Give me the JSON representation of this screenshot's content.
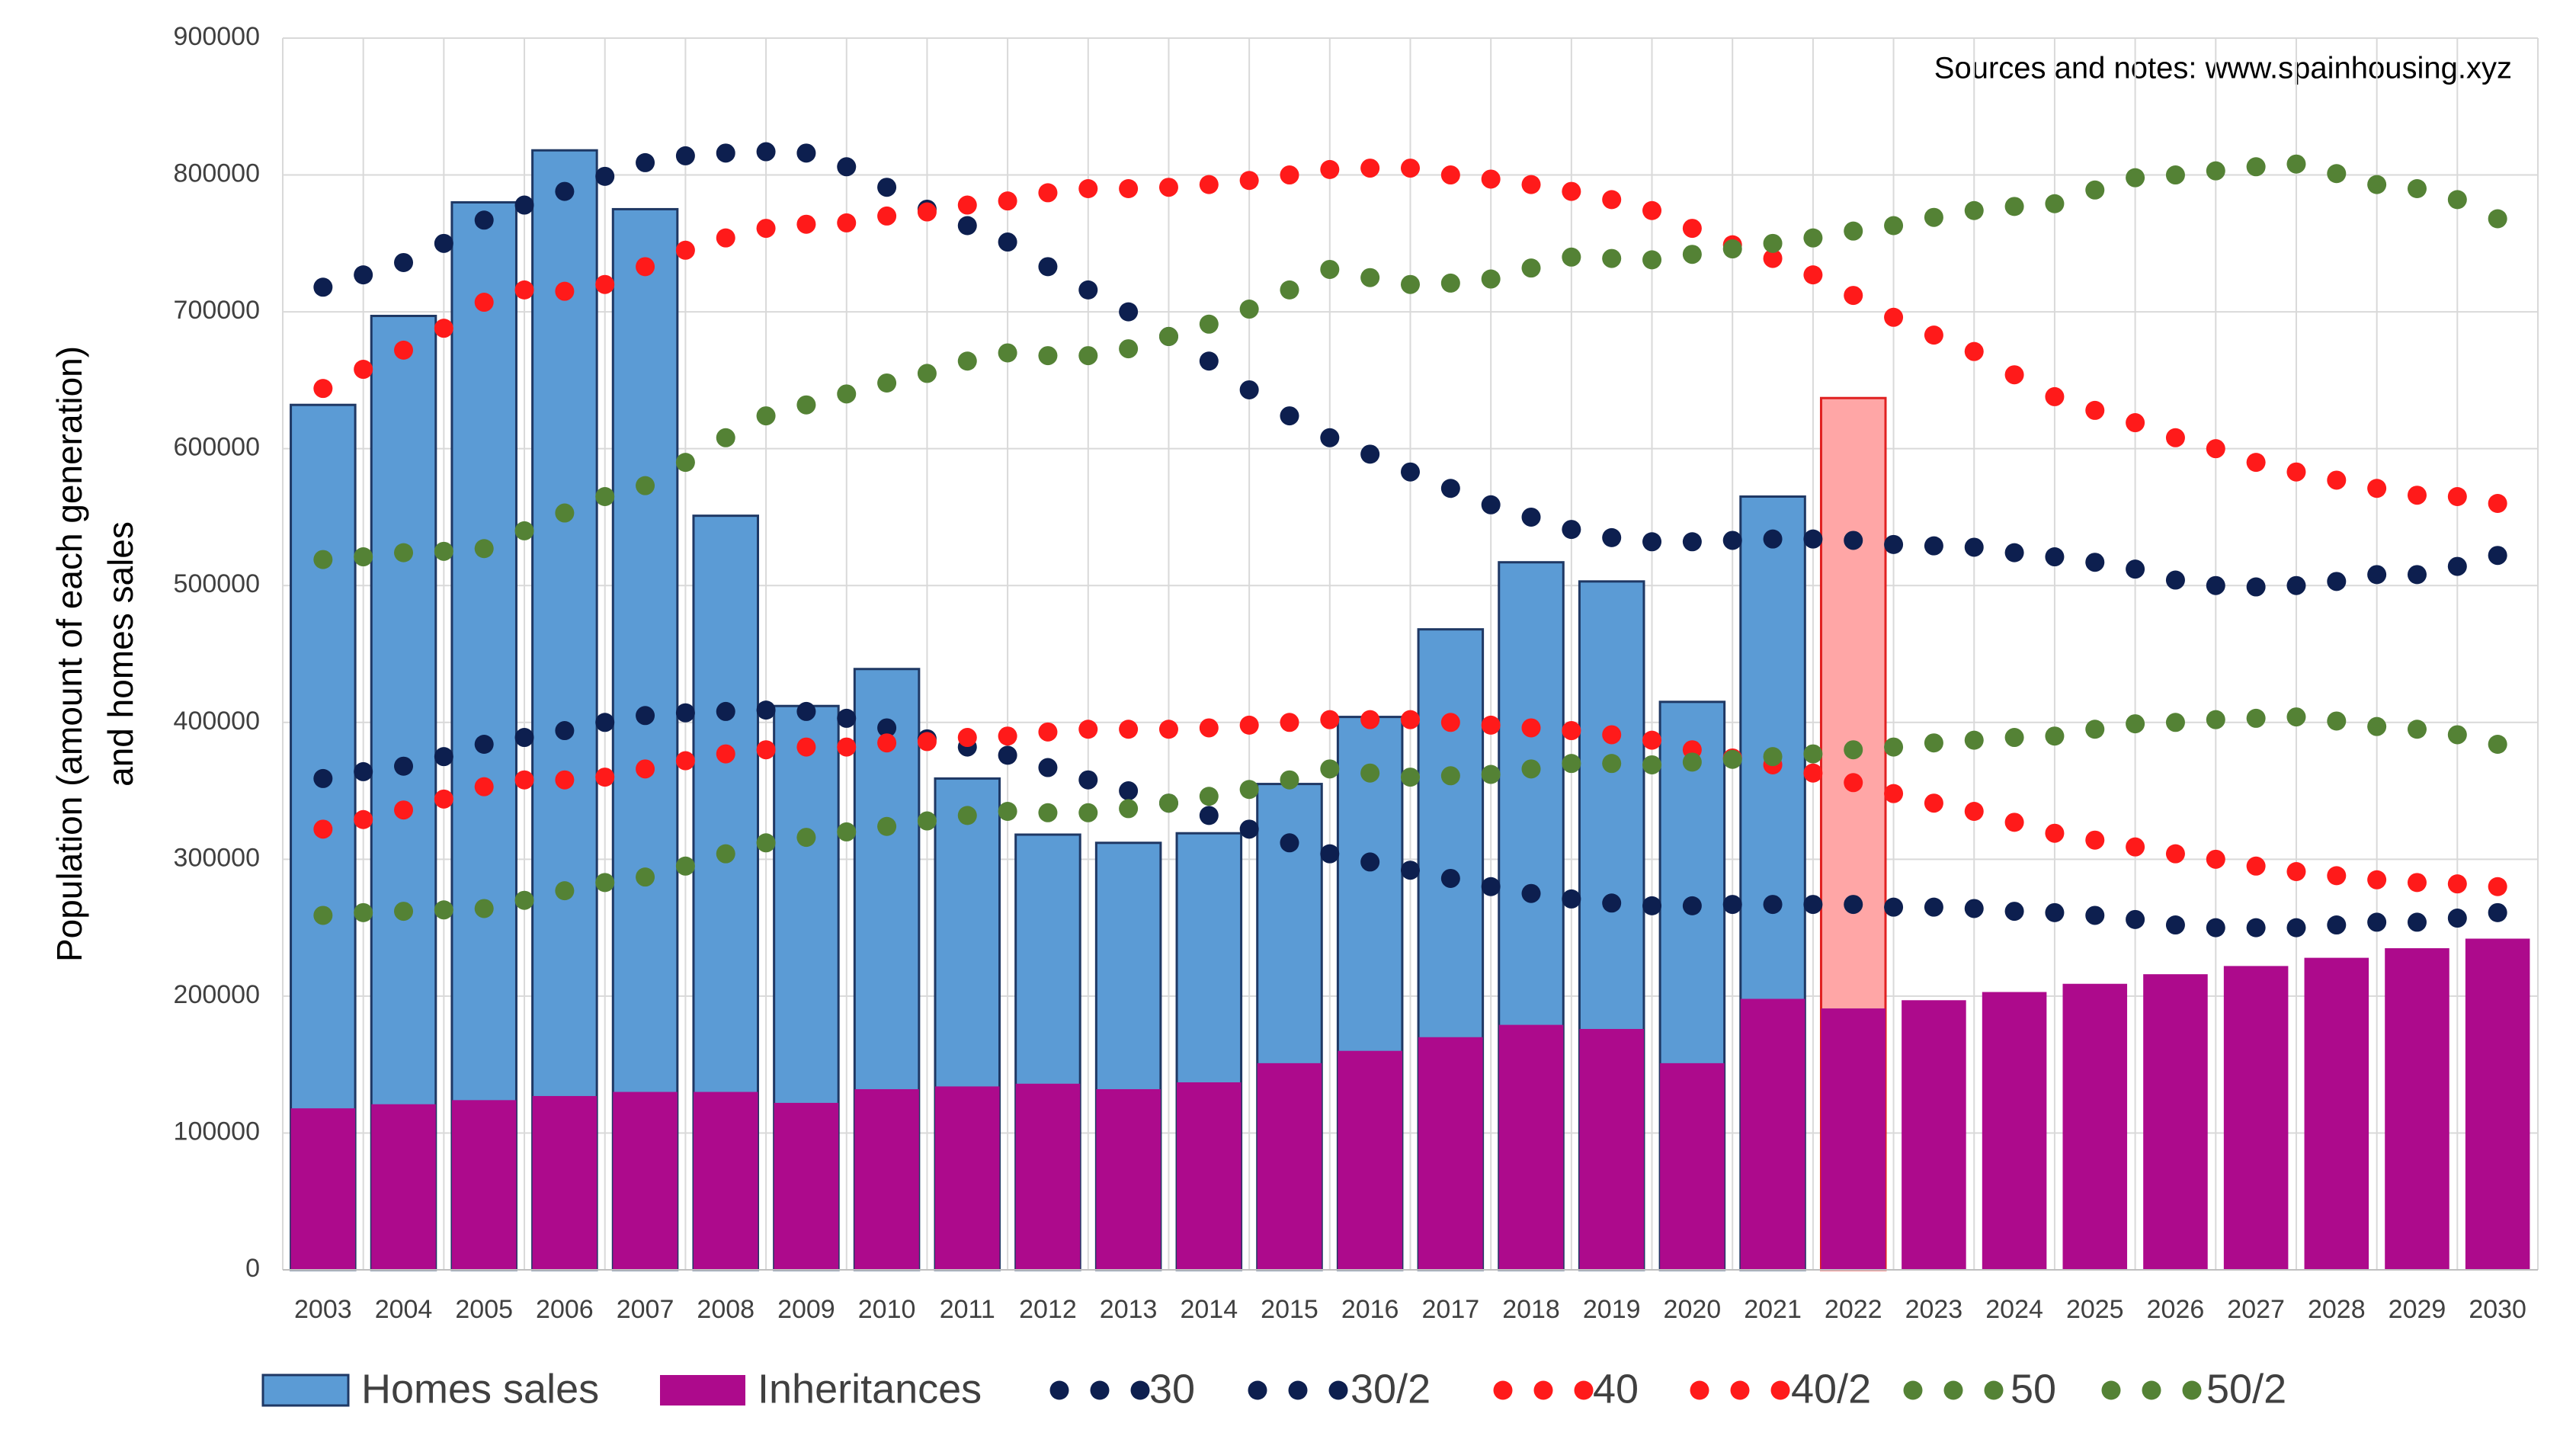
{
  "chart_data": {
    "type": "combo",
    "annotation": "Sources and notes: www.spainhousing.xyz",
    "ylabel": [
      "Population (amount of each generation)",
      "and homes sales"
    ],
    "categories": [
      "2003",
      "2004",
      "2005",
      "2006",
      "2007",
      "2008",
      "2009",
      "2010",
      "2011",
      "2012",
      "2013",
      "2014",
      "2015",
      "2016",
      "2017",
      "2018",
      "2019",
      "2020",
      "2021",
      "2022",
      "2023",
      "2024",
      "2025",
      "2026",
      "2027",
      "2028",
      "2029",
      "2030"
    ],
    "x": [
      2003,
      2003.5,
      2004,
      2004.5,
      2005,
      2005.5,
      2006,
      2006.5,
      2007,
      2007.5,
      2008,
      2008.5,
      2009,
      2009.5,
      2010,
      2010.5,
      2011,
      2011.5,
      2012,
      2012.5,
      2013,
      2013.5,
      2014,
      2014.5,
      2015,
      2015.5,
      2016,
      2016.5,
      2017,
      2017.5,
      2018,
      2018.5,
      2019,
      2019.5,
      2020,
      2020.5,
      2021,
      2021.5,
      2022,
      2022.5,
      2023,
      2023.5,
      2024,
      2024.5,
      2025,
      2025.5,
      2026,
      2026.5,
      2027,
      2027.5,
      2028,
      2028.5,
      2029,
      2029.5,
      2030
    ],
    "ylim": [
      0,
      900000
    ],
    "yticks": [
      0,
      100000,
      200000,
      300000,
      400000,
      500000,
      600000,
      700000,
      800000,
      900000
    ],
    "grid": true,
    "legend": "bottom",
    "series": [
      {
        "name": "Homes sales",
        "type": "bar",
        "color": "#5b9bd5",
        "edge": "#1f3864",
        "highlight_category": "2022",
        "highlight_color": "#ffa6a6",
        "highlight_edge": "#e02020",
        "values": [
          632000,
          697000,
          780000,
          818000,
          775000,
          551000,
          412000,
          439000,
          359000,
          318000,
          312000,
          319000,
          355000,
          404000,
          468000,
          517000,
          503000,
          415000,
          565000,
          637000,
          null,
          null,
          null,
          null,
          null,
          null,
          null,
          null
        ]
      },
      {
        "name": "Inheritances",
        "type": "bar",
        "color": "#ad0a8c",
        "values": [
          118000,
          121000,
          124000,
          127000,
          130000,
          130000,
          122000,
          132000,
          134000,
          136000,
          132000,
          137000,
          151000,
          160000,
          170000,
          179000,
          176000,
          151000,
          198000,
          191000,
          197000,
          203000,
          209000,
          216000,
          222000,
          228000,
          235000,
          242000
        ]
      },
      {
        "name": "30",
        "type": "scatter",
        "color": "#0d1f4f",
        "values": [
          718000,
          727000,
          736000,
          750000,
          767000,
          778000,
          788000,
          799000,
          809000,
          814000,
          816000,
          817000,
          816000,
          806000,
          791000,
          775000,
          763000,
          751000,
          733000,
          716000,
          700000,
          682000,
          664000,
          643000,
          624000,
          608000,
          596000,
          583000,
          571000,
          559000,
          550000,
          541000,
          535000,
          532000,
          532000,
          533000,
          534000,
          534000,
          533000,
          530000,
          529000,
          528000,
          524000,
          521000,
          517000,
          512000,
          504000,
          500000,
          499000,
          500000,
          503000,
          508000,
          508000,
          514000,
          522000
        ]
      },
      {
        "name": "30/2",
        "type": "scatter",
        "color": "#0d1f4f",
        "values": [
          359000,
          364000,
          368000,
          375000,
          384000,
          389000,
          394000,
          400000,
          405000,
          407000,
          408000,
          409000,
          408000,
          403000,
          396000,
          388000,
          382000,
          376000,
          367000,
          358000,
          350000,
          341000,
          332000,
          322000,
          312000,
          304000,
          298000,
          292000,
          286000,
          280000,
          275000,
          271000,
          268000,
          266000,
          266000,
          267000,
          267000,
          267000,
          267000,
          265000,
          265000,
          264000,
          262000,
          261000,
          259000,
          256000,
          252000,
          250000,
          250000,
          250000,
          252000,
          254000,
          254000,
          257000,
          261000
        ]
      },
      {
        "name": "40",
        "type": "scatter",
        "color": "#ff1a1a",
        "values": [
          644000,
          658000,
          672000,
          688000,
          707000,
          716000,
          715000,
          720000,
          733000,
          745000,
          754000,
          761000,
          764000,
          765000,
          770000,
          773000,
          778000,
          781000,
          787000,
          790000,
          790000,
          791000,
          793000,
          796000,
          800000,
          804000,
          805000,
          805000,
          800000,
          797000,
          793000,
          788000,
          782000,
          774000,
          761000,
          749000,
          739000,
          727000,
          712000,
          696000,
          683000,
          671000,
          654000,
          638000,
          628000,
          619000,
          608000,
          600000,
          590000,
          583000,
          577000,
          571000,
          566000,
          565000,
          560000
        ]
      },
      {
        "name": "40/2",
        "type": "scatter",
        "color": "#ff1a1a",
        "values": [
          322000,
          329000,
          336000,
          344000,
          353000,
          358000,
          358000,
          360000,
          366000,
          372000,
          377000,
          380000,
          382000,
          382000,
          385000,
          386000,
          389000,
          390000,
          393000,
          395000,
          395000,
          395000,
          396000,
          398000,
          400000,
          402000,
          402000,
          402000,
          400000,
          398000,
          396000,
          394000,
          391000,
          387000,
          380000,
          374000,
          369000,
          363000,
          356000,
          348000,
          341000,
          335000,
          327000,
          319000,
          314000,
          309000,
          304000,
          300000,
          295000,
          291000,
          288000,
          285000,
          283000,
          282000,
          280000
        ]
      },
      {
        "name": "50",
        "type": "scatter",
        "color": "#548235",
        "values": [
          519000,
          521000,
          524000,
          525000,
          527000,
          540000,
          553000,
          565000,
          573000,
          590000,
          608000,
          624000,
          632000,
          640000,
          648000,
          655000,
          664000,
          670000,
          668000,
          668000,
          673000,
          682000,
          691000,
          702000,
          716000,
          731000,
          725000,
          720000,
          721000,
          724000,
          732000,
          740000,
          739000,
          738000,
          742000,
          746000,
          750000,
          754000,
          759000,
          763000,
          769000,
          774000,
          777000,
          779000,
          789000,
          798000,
          800000,
          803000,
          806000,
          808000,
          801000,
          793000,
          790000,
          782000,
          768000
        ]
      },
      {
        "name": "50/2",
        "type": "scatter",
        "color": "#548235",
        "values": [
          259000,
          261000,
          262000,
          263000,
          264000,
          270000,
          277000,
          283000,
          287000,
          295000,
          304000,
          312000,
          316000,
          320000,
          324000,
          328000,
          332000,
          335000,
          334000,
          334000,
          337000,
          341000,
          346000,
          351000,
          358000,
          366000,
          363000,
          360000,
          361000,
          362000,
          366000,
          370000,
          370000,
          369000,
          371000,
          373000,
          375000,
          377000,
          380000,
          382000,
          385000,
          387000,
          389000,
          390000,
          395000,
          399000,
          400000,
          402000,
          403000,
          404000,
          401000,
          397000,
          395000,
          391000,
          384000
        ]
      }
    ]
  }
}
